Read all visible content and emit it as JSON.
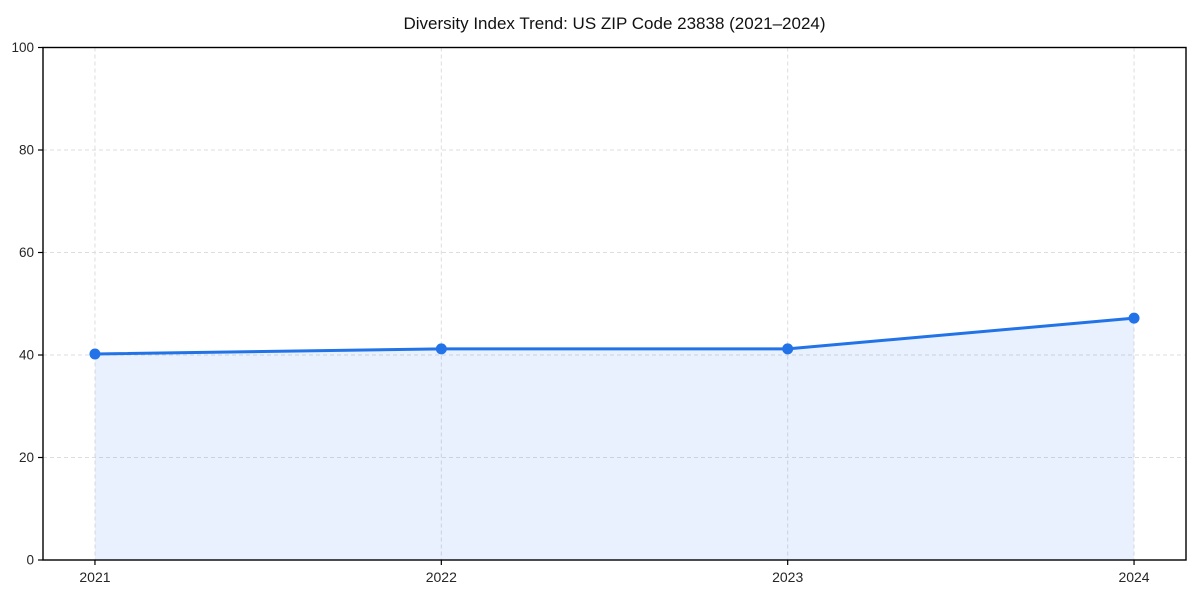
{
  "chart_data": {
    "type": "area",
    "title": "Diversity Index Trend: US ZIP Code 23838 (2021–2024)",
    "x": [
      2021,
      2022,
      2023,
      2024
    ],
    "xticklabels": [
      "2021",
      "2022",
      "2023",
      "2024"
    ],
    "series": [
      {
        "name": "Diversity Index",
        "values": [
          40.2,
          41.2,
          41.2,
          47.2
        ]
      }
    ],
    "xlabel": "",
    "ylabel": "",
    "xlim": [
      2020.85,
      2024.15
    ],
    "ylim": [
      0,
      100
    ],
    "yticks": [
      0,
      20,
      40,
      60,
      80,
      100
    ],
    "grid": true,
    "grid_style": "dashed",
    "legend_position": "none",
    "marker": "circle",
    "colors": {
      "line": "#2273E8",
      "marker": "#2273E8",
      "fill": "#2273E8",
      "fill_flattened": "#E9F1FD",
      "fill_opacity": 0.1,
      "grid": "#DDDDDD",
      "axis": "#000000",
      "tick_label": "#262626",
      "title": "#111111",
      "background": "#FFFFFF"
    }
  }
}
